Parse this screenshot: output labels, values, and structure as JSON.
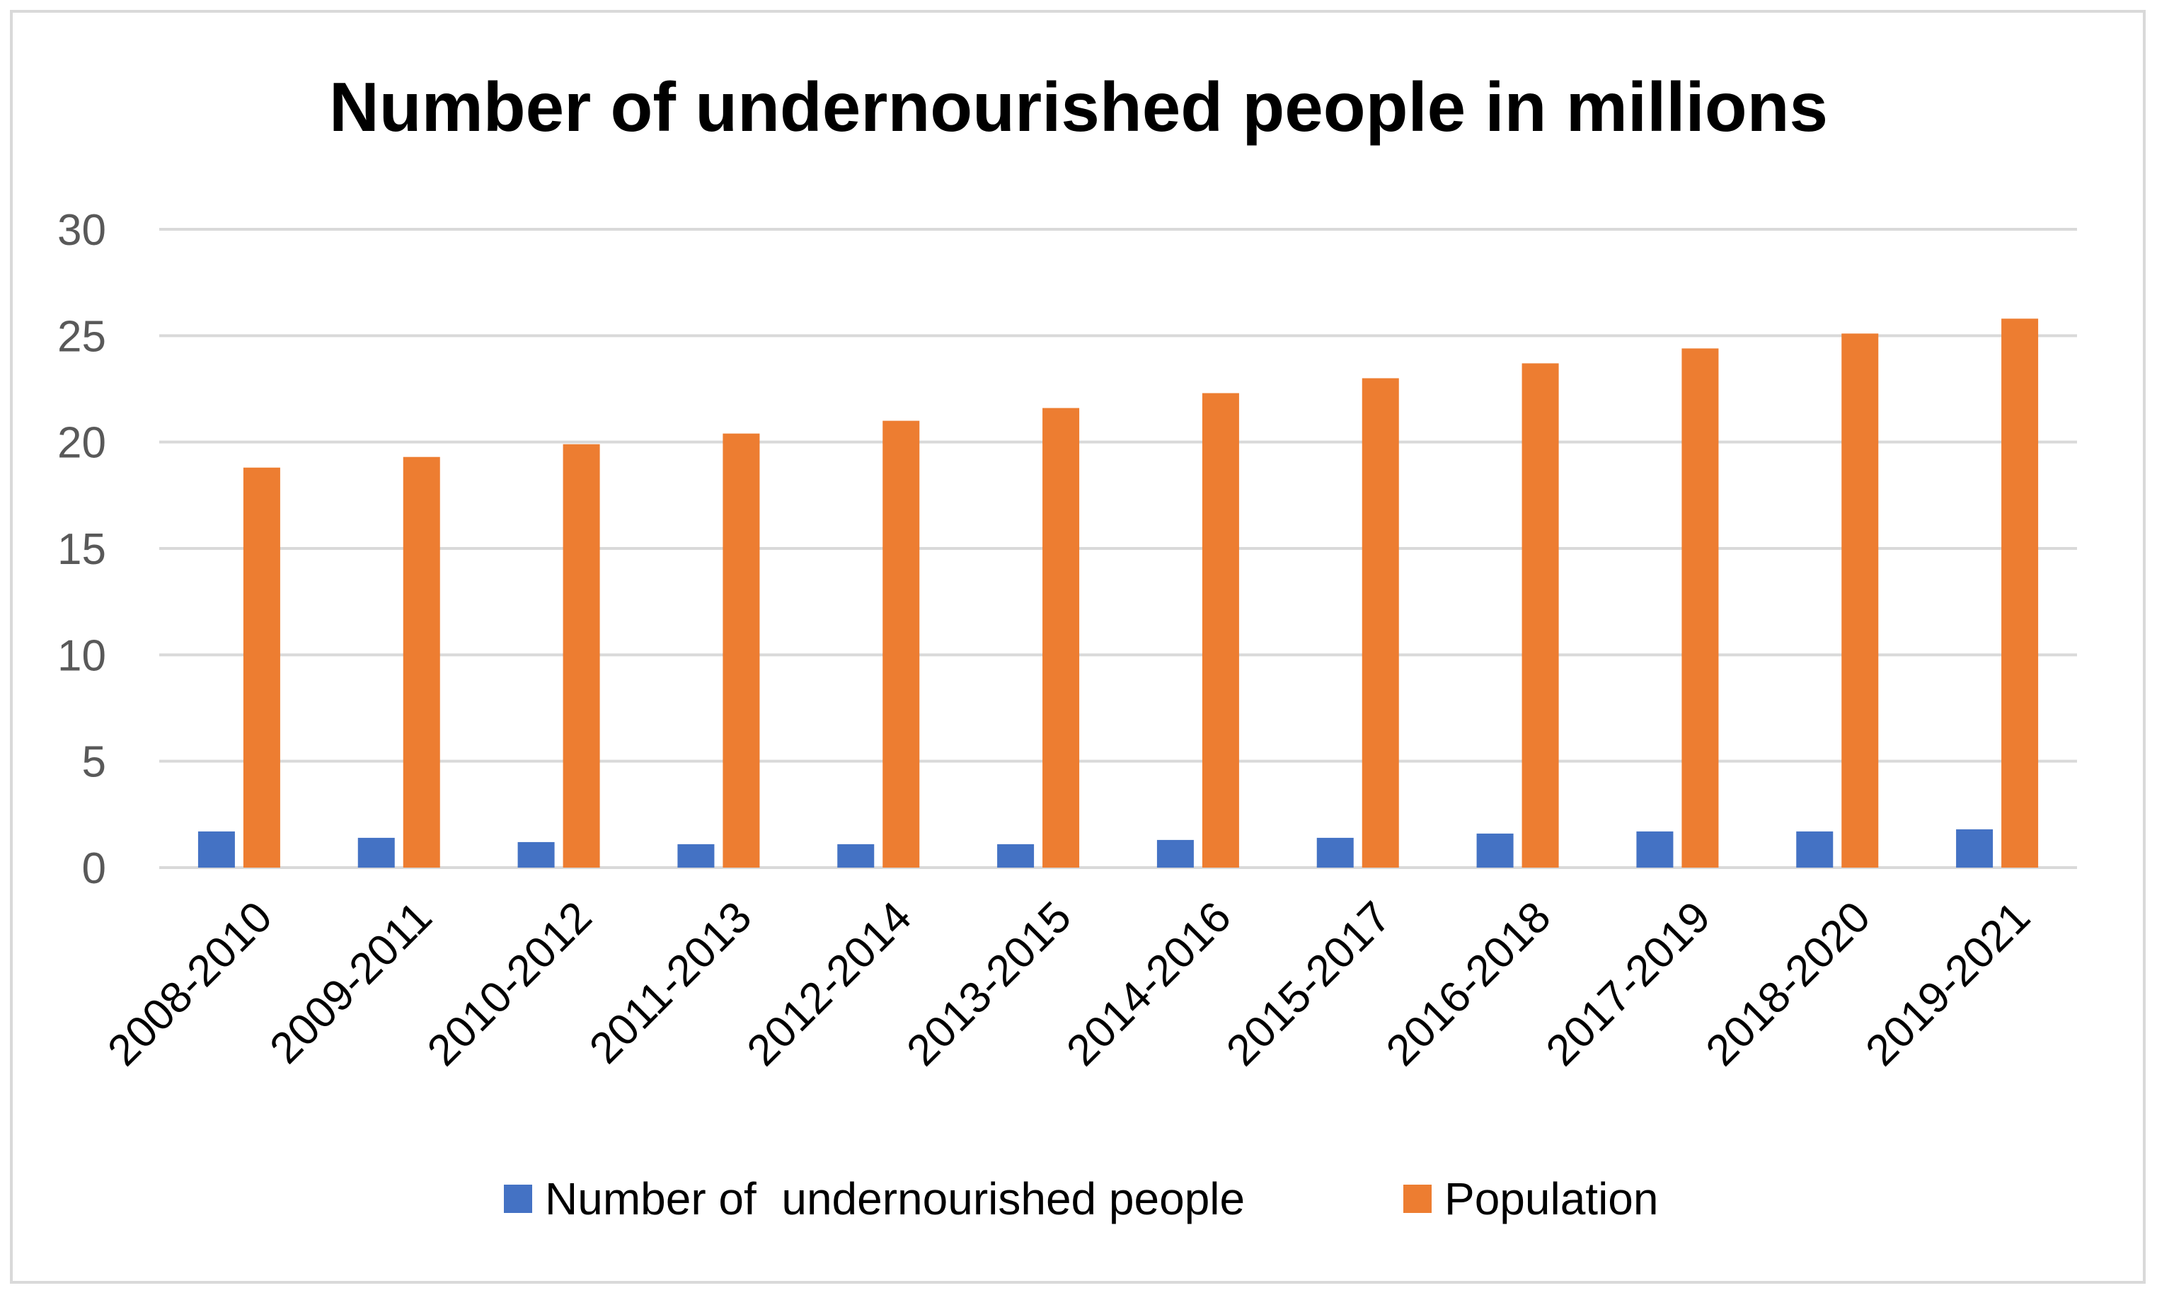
{
  "chart_data": {
    "type": "bar",
    "title": "Number of undernourished people in millions",
    "xlabel": "",
    "ylabel": "",
    "ylim": [
      0,
      30
    ],
    "yticks": [
      0,
      5,
      10,
      15,
      20,
      25,
      30
    ],
    "grid": true,
    "legend_position": "bottom",
    "categories": [
      "2008-2010",
      "2009-2011",
      "2010-2012",
      "2011-2013",
      "2012-2014",
      "2013-2015",
      "2014-2016",
      "2015-2017",
      "2016-2018",
      "2017-2019",
      "2018-2020",
      "2019-2021"
    ],
    "series": [
      {
        "name": "Number of  undernourished people",
        "color": "#4472C4",
        "values": [
          1.7,
          1.4,
          1.2,
          1.1,
          1.1,
          1.1,
          1.3,
          1.4,
          1.6,
          1.7,
          1.7,
          1.8
        ]
      },
      {
        "name": "Population",
        "color": "#ED7D31",
        "values": [
          18.8,
          19.3,
          19.9,
          20.4,
          21.0,
          21.6,
          22.3,
          23.0,
          23.7,
          24.4,
          25.1,
          25.8
        ]
      }
    ]
  },
  "colors": {
    "gridline": "#D9D9D9",
    "axis_text": "#595959",
    "frame": "#D9D9D9"
  }
}
